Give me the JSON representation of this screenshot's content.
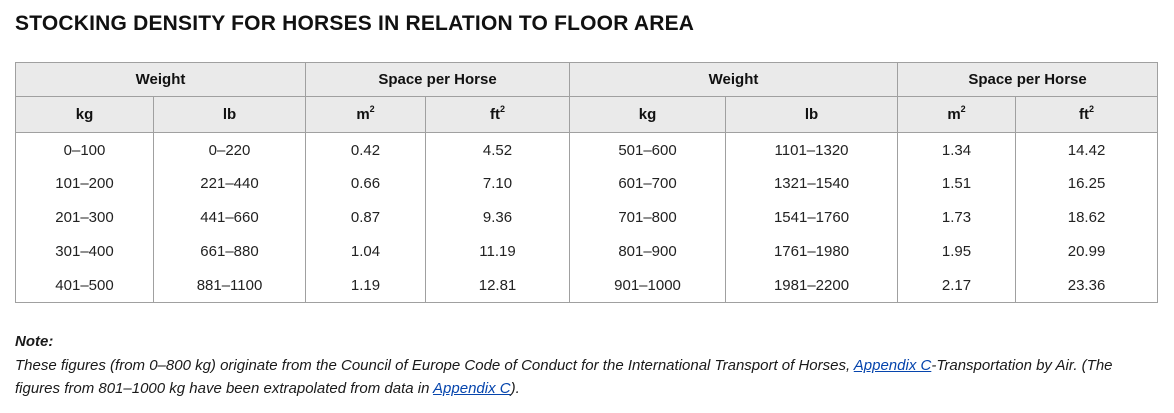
{
  "title": "STOCKING DENSITY FOR HORSES IN RELATION TO FLOOR AREA",
  "table": {
    "group_headers": {
      "weight_left": "Weight",
      "space_left": "Space per Horse",
      "weight_right": "Weight",
      "space_right": "Space per Horse"
    },
    "unit_headers": {
      "kg_left": "kg",
      "lb_left": "lb",
      "m2_left": "m",
      "ft2_left": "ft",
      "kg_right": "kg",
      "lb_right": "lb",
      "m2_right": "m",
      "ft2_right": "ft",
      "superscript": "2"
    },
    "rows": [
      [
        "0–100",
        "0–220",
        "0.42",
        "4.52",
        "501–600",
        "1101–1320",
        "1.34",
        "14.42"
      ],
      [
        "101–200",
        "221–440",
        "0.66",
        "7.10",
        "601–700",
        "1321–1540",
        "1.51",
        "16.25"
      ],
      [
        "201–300",
        "441–660",
        "0.87",
        "9.36",
        "701–800",
        "1541–1760",
        "1.73",
        "18.62"
      ],
      [
        "301–400",
        "661–880",
        "1.04",
        "11.19",
        "801–900",
        "1761–1980",
        "1.95",
        "20.99"
      ],
      [
        "401–500",
        "881–1100",
        "1.19",
        "12.81",
        "901–1000",
        "1981–2200",
        "2.17",
        "23.36"
      ]
    ]
  },
  "note": {
    "label": "Note:",
    "text_1": "These figures (from 0–800 kg) originate from the Council of Europe Code of Conduct for the International Transport of Horses, ",
    "link_1": "Appendix C",
    "text_2": "-Transportation by Air. (The figures from 801–1000 kg have been extrapolated from data in ",
    "link_2": "Appendix C",
    "text_3": ")."
  }
}
